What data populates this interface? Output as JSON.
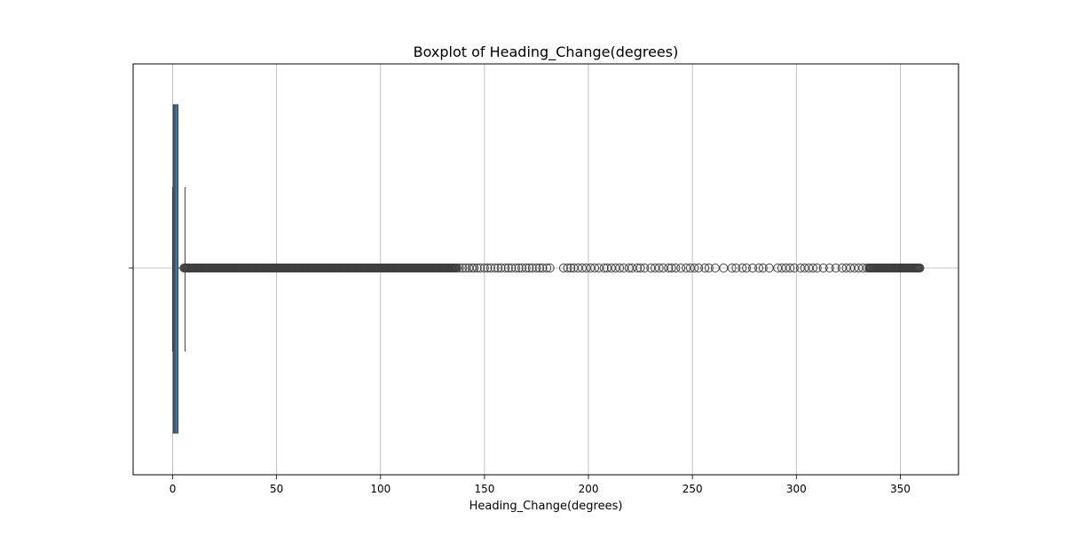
{
  "chart_data": {
    "type": "boxplot",
    "title": "Boxplot of Heading_Change(degrees)",
    "xlabel": "Heading_Change(degrees)",
    "ylabel": "",
    "orientation": "horizontal",
    "xlim": [
      -19,
      378
    ],
    "xticks": [
      0,
      50,
      100,
      150,
      200,
      250,
      300,
      350
    ],
    "grid": true,
    "colors": {
      "box_fill": "#3b75af",
      "line": "#3f3f3f",
      "grid": "#b0b0b0"
    },
    "box": {
      "whisker_low": 0,
      "q1": 0.3,
      "median": 1.0,
      "q3": 2.6,
      "whisker_high": 6.0
    },
    "outliers": {
      "dense_ranges": [
        [
          5.5,
          137
        ],
        [
          335,
          359.5
        ]
      ],
      "sparse_points": [
        138,
        139.5,
        141,
        142.5,
        144,
        145,
        146.5,
        148,
        150,
        151.5,
        153,
        155,
        156.5,
        158,
        160,
        161.5,
        163,
        165,
        166.5,
        168,
        170,
        171.5,
        173,
        175,
        176.5,
        178,
        180,
        181.5,
        188,
        190,
        191.5,
        193,
        195,
        197,
        199,
        201,
        203,
        205,
        207.5,
        209,
        211,
        213,
        215,
        217,
        219.5,
        221,
        223.5,
        225,
        227,
        230,
        232,
        234,
        236,
        238.5,
        240,
        242,
        244.5,
        247,
        249,
        251,
        253,
        256,
        258,
        261,
        265,
        269,
        271,
        274,
        276,
        279,
        282,
        284,
        287,
        291,
        293,
        295,
        297,
        299,
        302,
        304,
        306,
        308,
        310,
        313,
        316,
        319,
        322,
        324,
        326,
        328,
        330,
        332,
        334
      ]
    }
  }
}
